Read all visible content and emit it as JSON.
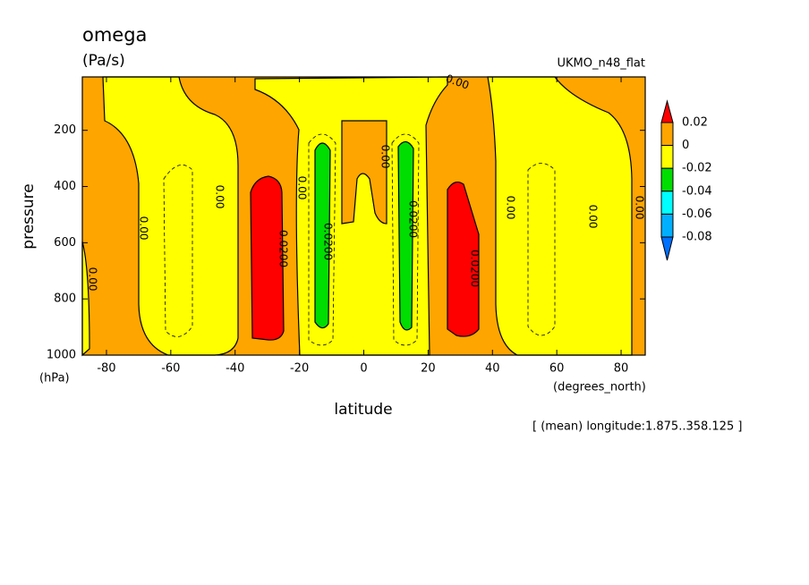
{
  "chart_data": {
    "type": "contour",
    "title": "omega",
    "units": "(Pa/s)",
    "dataset": "UKMO_n48_flat",
    "xlabel": "latitude",
    "xunits": "(degrees_north)",
    "ylabel": "pressure",
    "yunits": "(hPa)",
    "footnote": "[ (mean) longitude:1.875..358.125 ]",
    "xlim": [
      -87.5,
      87.5
    ],
    "xticks": [
      -80,
      -60,
      -40,
      -20,
      0,
      20,
      40,
      60,
      80
    ],
    "ylim": [
      1000,
      10
    ],
    "yticks": [
      200,
      400,
      600,
      800,
      1000
    ],
    "levels": [
      0.02,
      0,
      -0.02,
      -0.04,
      -0.06,
      -0.08
    ],
    "colors": [
      "#ff0000",
      "#ffa500",
      "#ffff00",
      "#00dd00",
      "#00ffff",
      "#00b0ff",
      "#0070ff"
    ],
    "contour_labels": [
      {
        "value": 0,
        "label": "0.00"
      },
      {
        "value": 0,
        "label": "0.00"
      },
      {
        "value": 0,
        "label": "0.00"
      },
      {
        "value": 0,
        "label": "0.00"
      },
      {
        "value": 0,
        "label": "0.00"
      },
      {
        "value": 0,
        "label": "0.00"
      },
      {
        "value": 0,
        "label": "0.00"
      },
      {
        "value": 0,
        "label": "0.00"
      },
      {
        "value": 0,
        "label": "0.00"
      },
      {
        "value": 0.02,
        "label": "0.0200"
      },
      {
        "value": 0.02,
        "label": "0.0200"
      },
      {
        "value": 0.02,
        "label": "0.0200"
      },
      {
        "value": 0.02,
        "label": "0.0200"
      }
    ]
  }
}
